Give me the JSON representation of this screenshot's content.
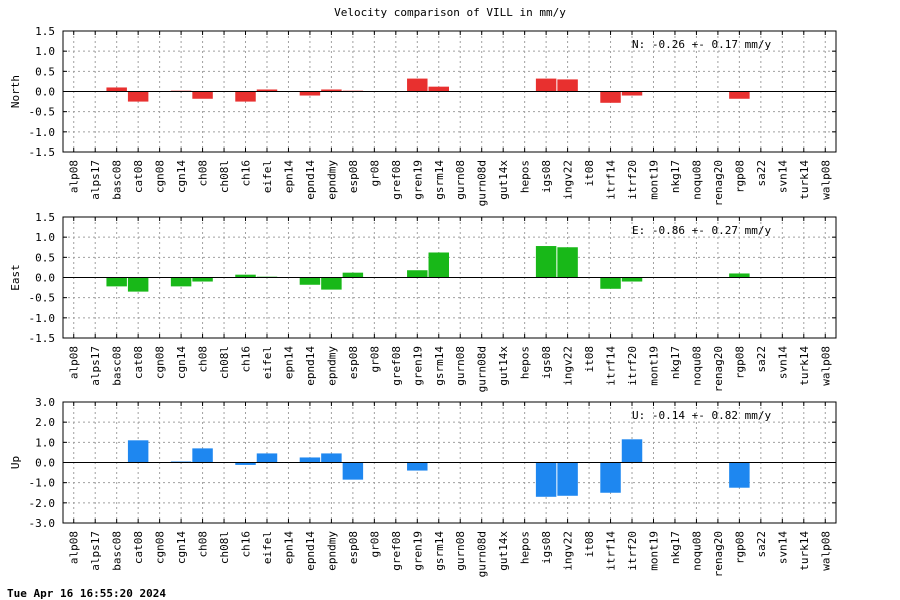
{
  "chart_title": "Velocity comparison of VILL in mm/y",
  "footer_timestamp": "Tue Apr 16 16:55:20 2024",
  "chart_data": [
    {
      "type": "bar",
      "ylabel": "North",
      "ylim": [
        -1.5,
        1.5
      ],
      "yticks": [
        "1.5",
        "1.0",
        "0.5",
        "0.0",
        "-0.5",
        "-1.0",
        "-1.5"
      ],
      "grid": true,
      "color": "#e8302f",
      "annotation": "N:  -0.26 +-  0.17 mm/y",
      "categories": [
        "alp08",
        "alps17",
        "basc08",
        "cat08",
        "cgn08",
        "cgn14",
        "ch08",
        "ch08l",
        "ch16",
        "eifel",
        "epn14",
        "epnd14",
        "epndmy",
        "esp08",
        "gr08",
        "gref08",
        "gren19",
        "gsrm14",
        "gurn08",
        "gurn08d",
        "gut14x",
        "hepos",
        "igs08",
        "ingv22",
        "it08",
        "itrf14",
        "itrf20",
        "mont19",
        "nkg17",
        "noqu08",
        "renag20",
        "rgp08",
        "sa22",
        "svn14",
        "turk14",
        "walp08"
      ],
      "values": [
        0,
        0,
        0.1,
        -0.25,
        0,
        0.02,
        -0.18,
        0,
        -0.25,
        0.05,
        0,
        -0.1,
        0.05,
        0.02,
        0,
        0,
        0.32,
        0.12,
        0,
        0,
        0,
        0,
        0.32,
        0.3,
        0,
        -0.28,
        -0.1,
        0,
        0,
        0,
        0,
        -0.18,
        0,
        0,
        0,
        0
      ]
    },
    {
      "type": "bar",
      "ylabel": "East",
      "ylim": [
        -1.5,
        1.5
      ],
      "yticks": [
        "1.5",
        "1.0",
        "0.5",
        "0.0",
        "-0.5",
        "-1.0",
        "-1.5"
      ],
      "grid": true,
      "color": "#18b818",
      "annotation": "E:  -0.86 +-  0.27 mm/y",
      "categories": [
        "alp08",
        "alps17",
        "basc08",
        "cat08",
        "cgn08",
        "cgn14",
        "ch08",
        "ch08l",
        "ch16",
        "eifel",
        "epn14",
        "epnd14",
        "epndmy",
        "esp08",
        "gr08",
        "gref08",
        "gren19",
        "gsrm14",
        "gurn08",
        "gurn08d",
        "gut14x",
        "hepos",
        "igs08",
        "ingv22",
        "it08",
        "itrf14",
        "itrf20",
        "mont19",
        "nkg17",
        "noqu08",
        "renag20",
        "rgp08",
        "sa22",
        "svn14",
        "turk14",
        "walp08"
      ],
      "values": [
        0,
        0,
        -0.22,
        -0.35,
        0,
        -0.22,
        -0.1,
        0,
        0.07,
        0.02,
        0,
        -0.18,
        -0.3,
        0.12,
        0,
        0,
        0.18,
        0.62,
        0,
        0,
        0,
        0,
        0.78,
        0.75,
        0,
        -0.28,
        -0.1,
        0,
        0,
        0,
        0,
        0.1,
        0,
        0,
        0,
        0
      ]
    },
    {
      "type": "bar",
      "ylabel": "Up",
      "ylim": [
        -3.0,
        3.0
      ],
      "yticks": [
        "3.0",
        "2.0",
        "1.0",
        "0.0",
        "-1.0",
        "-2.0",
        "-3.0"
      ],
      "grid": true,
      "color": "#1e87f0",
      "annotation": "U:  -0.14 +-  0.82 mm/y",
      "categories": [
        "alp08",
        "alps17",
        "basc08",
        "cat08",
        "cgn08",
        "cgn14",
        "ch08",
        "ch08l",
        "ch16",
        "eifel",
        "epn14",
        "epnd14",
        "epndmy",
        "esp08",
        "gr08",
        "gref08",
        "gren19",
        "gsrm14",
        "gurn08",
        "gurn08d",
        "gut14x",
        "hepos",
        "igs08",
        "ingv22",
        "it08",
        "itrf14",
        "itrf20",
        "mont19",
        "nkg17",
        "noqu08",
        "renag20",
        "rgp08",
        "sa22",
        "svn14",
        "turk14",
        "walp08"
      ],
      "values": [
        0,
        0,
        0,
        1.1,
        0,
        0.05,
        0.7,
        0,
        -0.12,
        0.45,
        0,
        0.25,
        0.45,
        -0.85,
        0,
        0,
        -0.4,
        0,
        0,
        0,
        0,
        0,
        -1.7,
        -1.65,
        0,
        -1.5,
        1.15,
        0,
        0,
        0,
        0,
        -1.25,
        0,
        0,
        0,
        0
      ]
    }
  ]
}
